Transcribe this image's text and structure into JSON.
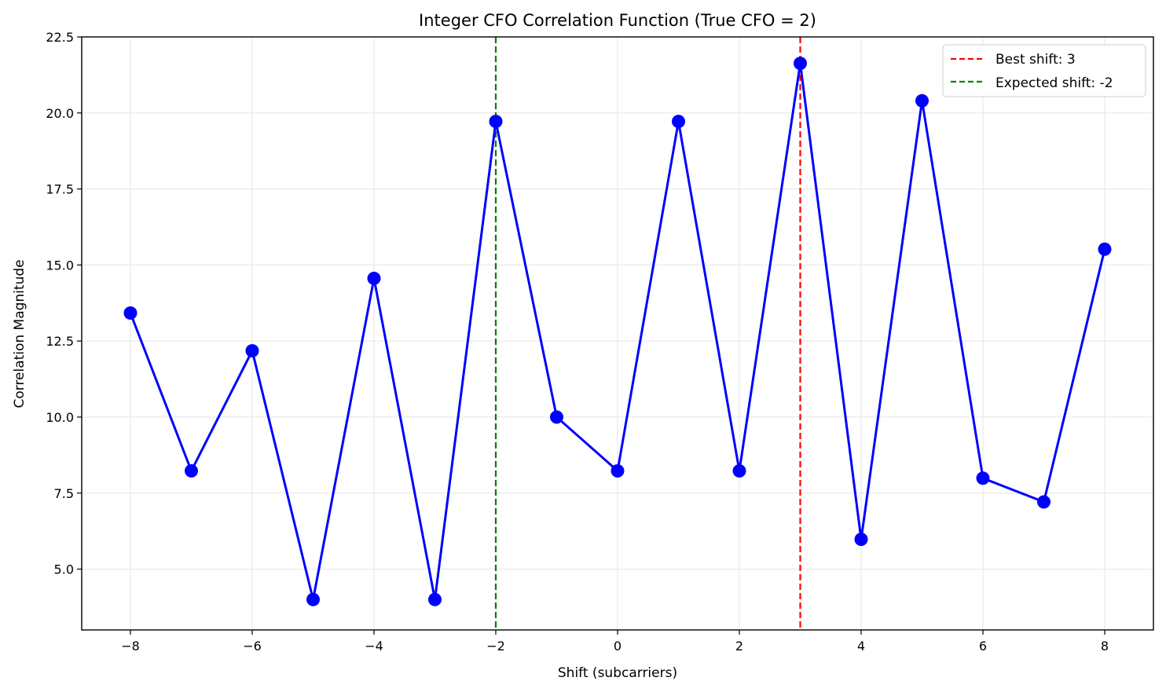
{
  "chart_data": {
    "type": "line",
    "title": "Integer CFO Correlation Function (True CFO = 2)",
    "xlabel": "Shift (subcarriers)",
    "ylabel": "Correlation Magnitude",
    "xlim": [
      -8.8,
      8.8
    ],
    "ylim": [
      3.0,
      22.5
    ],
    "xticks": [
      -8,
      -6,
      -4,
      -2,
      0,
      2,
      4,
      6,
      8
    ],
    "xtick_labels": [
      "−8",
      "−6",
      "−4",
      "−2",
      "0",
      "2",
      "4",
      "6",
      "8"
    ],
    "yticks": [
      5.0,
      7.5,
      10.0,
      12.5,
      15.0,
      17.5,
      20.0,
      22.5
    ],
    "ytick_labels": [
      "5.0",
      "7.5",
      "10.0",
      "12.5",
      "15.0",
      "17.5",
      "20.0",
      "22.5"
    ],
    "grid": true,
    "legend_position": "top-right",
    "x": [
      -8,
      -7,
      -6,
      -5,
      -4,
      -3,
      -2,
      -1,
      0,
      1,
      2,
      3,
      4,
      5,
      6,
      7,
      8
    ],
    "y": [
      13.42,
      8.23,
      12.18,
      4.0,
      14.56,
      4.0,
      19.72,
      10.0,
      8.23,
      19.72,
      8.23,
      21.63,
      5.98,
      20.4,
      7.99,
      7.21,
      15.52
    ],
    "series_color": "#0000ff",
    "vlines": [
      {
        "label": "Best shift: 3",
        "x": 3,
        "color": "#ff0000",
        "style": "dashed"
      },
      {
        "label": "Expected shift: -2",
        "x": -2,
        "color": "#008000",
        "style": "dashed"
      }
    ]
  }
}
